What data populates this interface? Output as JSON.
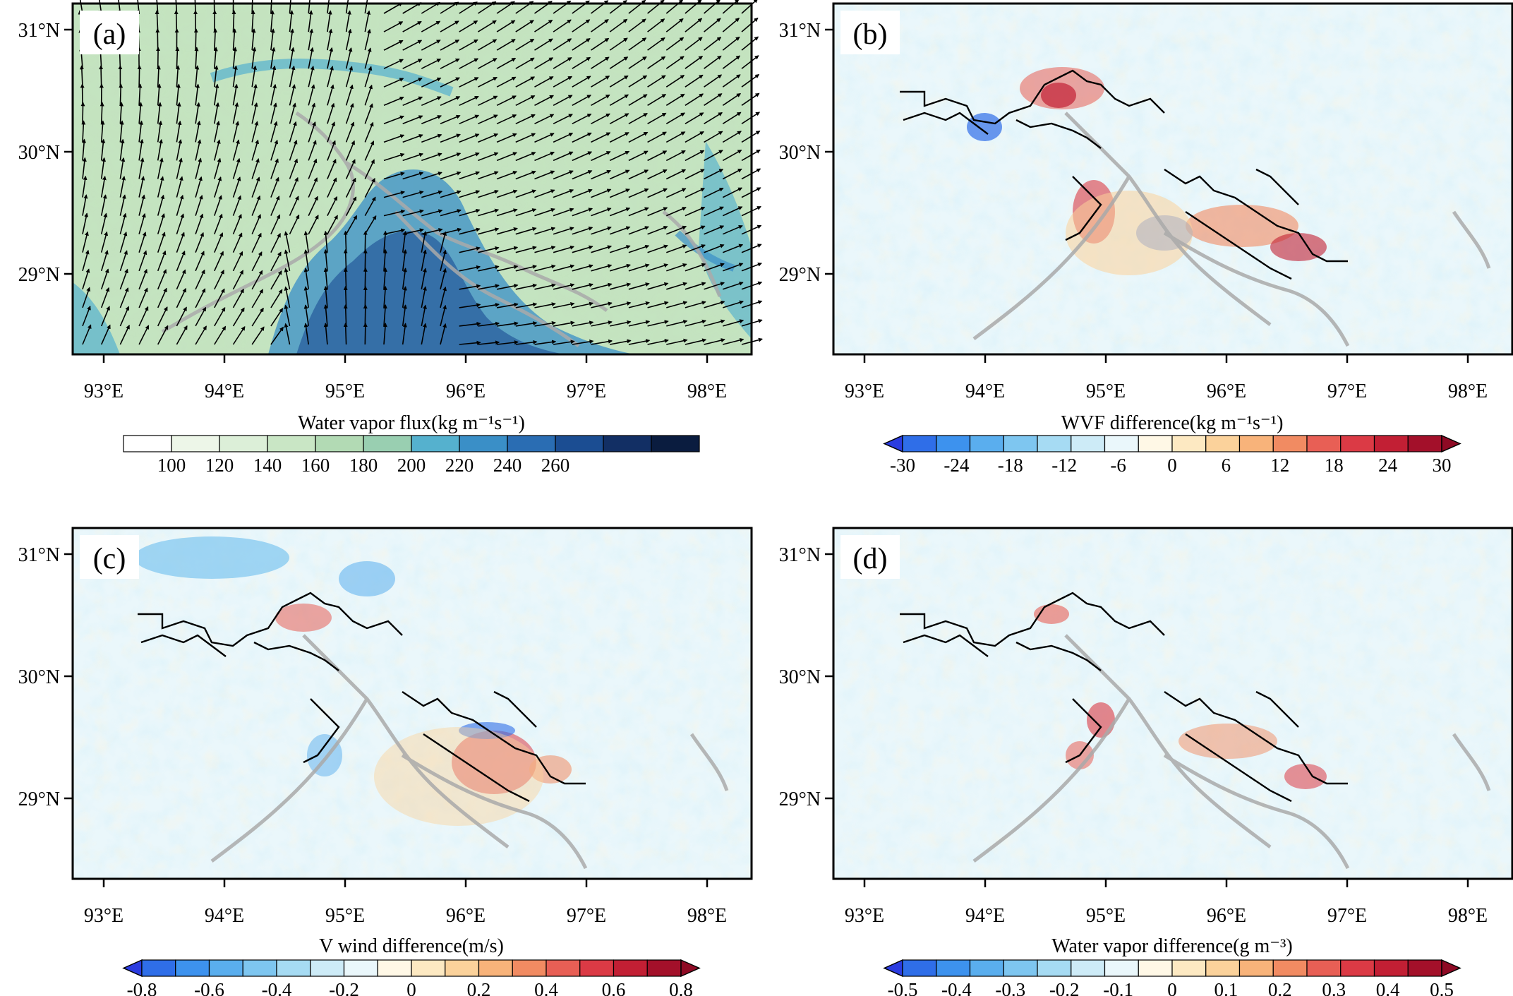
{
  "panels": [
    {
      "letter": "(a)",
      "kind": "vectors",
      "colorbar": {
        "title": "Water vapor flux(kg m⁻¹s⁻¹)",
        "labels": [
          "100",
          "120",
          "140",
          "160",
          "180",
          "200",
          "220",
          "240",
          "260"
        ],
        "colors": [
          "#ffffff",
          "#edf6e8",
          "#dcefd8",
          "#c9e6c5",
          "#b2dab4",
          "#99cfb1",
          "#55b1ce",
          "#3a8fc7",
          "#2a6db3",
          "#1b4d92",
          "#122f64",
          "#0a1c3f"
        ],
        "extend_left": false,
        "extend_right": false
      }
    },
    {
      "letter": "(b)",
      "kind": "difference",
      "colorbar": {
        "title": "WVF difference(kg m⁻¹s⁻¹)",
        "labels": [
          "-30",
          "-24",
          "-18",
          "-12",
          "-6",
          "0",
          "6",
          "12",
          "18",
          "24",
          "30"
        ],
        "colors": [
          "#2b3ce0",
          "#2f6ee8",
          "#3d92ee",
          "#5aaeee",
          "#7ec6f0",
          "#a6dbf3",
          "#cdebf7",
          "#eaf7fb",
          "#fff8e6",
          "#fde9c2",
          "#fbd29b",
          "#f8b37a",
          "#f18b62",
          "#e85f55",
          "#db3a45",
          "#c21f34",
          "#a3102a",
          "#8e0a24"
        ],
        "extend_left": true,
        "extend_right": true
      }
    },
    {
      "letter": "(c)",
      "kind": "difference",
      "colorbar": {
        "title": "V wind difference(m/s)",
        "labels": [
          "-0.8",
          "-0.6",
          "-0.4",
          "-0.2",
          "0",
          "0.2",
          "0.4",
          "0.6",
          "0.8"
        ],
        "colors": [
          "#2b3ce0",
          "#2f6ee8",
          "#3d92ee",
          "#5aaeee",
          "#7ec6f0",
          "#a6dbf3",
          "#cdebf7",
          "#eaf7fb",
          "#fff8e6",
          "#fde9c2",
          "#fbd29b",
          "#f8b37a",
          "#f18b62",
          "#e85f55",
          "#db3a45",
          "#c21f34",
          "#a3102a",
          "#8e0a24"
        ],
        "extend_left": true,
        "extend_right": true
      }
    },
    {
      "letter": "(d)",
      "kind": "difference",
      "colorbar": {
        "title": "Water vapor difference(g m⁻³)",
        "labels": [
          "-0.5",
          "-0.4",
          "-0.3",
          "-0.2",
          "-0.1",
          "0",
          "0.1",
          "0.2",
          "0.3",
          "0.4",
          "0.5"
        ],
        "colors": [
          "#2b3ce0",
          "#2f6ee8",
          "#3d92ee",
          "#5aaeee",
          "#7ec6f0",
          "#a6dbf3",
          "#cdebf7",
          "#eaf7fb",
          "#fff8e6",
          "#fde9c2",
          "#fbd29b",
          "#f8b37a",
          "#f18b62",
          "#e85f55",
          "#db3a45",
          "#c21f34",
          "#a3102a",
          "#8e0a24"
        ],
        "extend_left": true,
        "extend_right": true
      }
    }
  ],
  "x_ticks": [
    "93°E",
    "94°E",
    "95°E",
    "96°E",
    "97°E",
    "98°E"
  ],
  "y_ticks": [
    "31°N",
    "30°N",
    "29°N"
  ],
  "colors": {
    "frame": "#000000",
    "contour": "#aaaaaa",
    "outline": "#000000"
  }
}
